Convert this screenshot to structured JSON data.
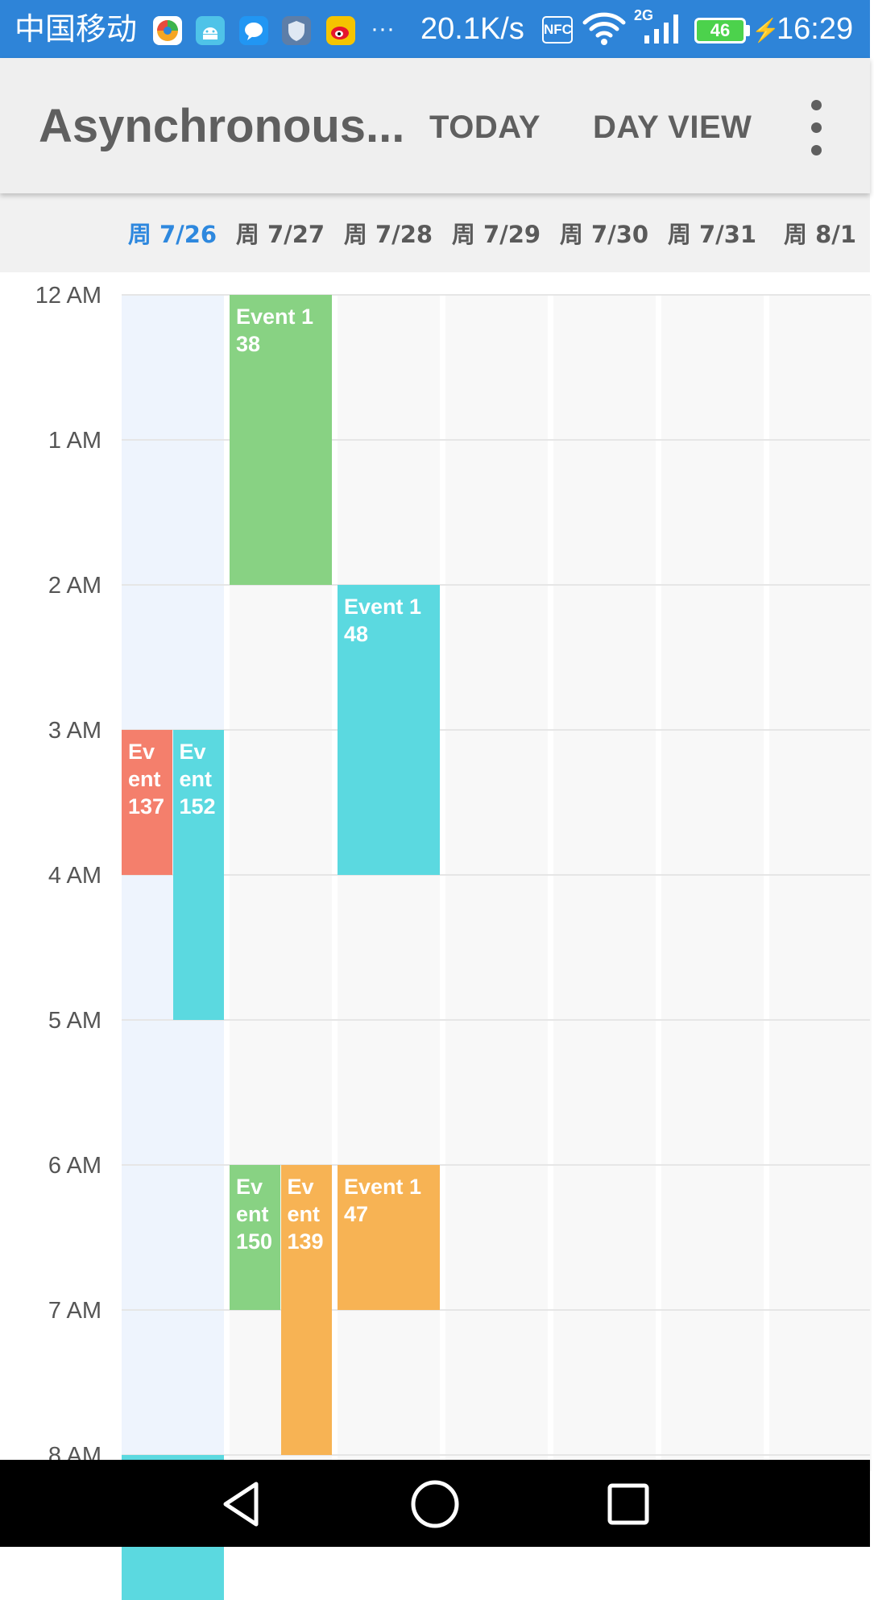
{
  "status_bar": {
    "carrier": "中国移动",
    "more": "···",
    "speed": "20.1K/s",
    "nfc": "NFC",
    "network_type": "2G",
    "battery": "46",
    "time": "16:29"
  },
  "app_bar": {
    "title": "Asynchronous...",
    "today_label": "TODAY",
    "day_view_label": "DAY VIEW"
  },
  "days": [
    "周 7/26",
    "周 7/27",
    "周 7/28",
    "周 7/29",
    "周 7/30",
    "周 7/31",
    "周 8/1"
  ],
  "today_index": 0,
  "hours": [
    "12 AM",
    "1 AM",
    "2 AM",
    "3 AM",
    "4 AM",
    "5 AM",
    "6 AM",
    "7 AM",
    "8 AM"
  ],
  "events": [
    {
      "label": "Event 137",
      "day": 0,
      "start": 3,
      "end": 4,
      "lane": 0,
      "lanes": 2,
      "color": "#f47f6c"
    },
    {
      "label": "Event 152",
      "day": 0,
      "start": 3,
      "end": 5,
      "lane": 1,
      "lanes": 2,
      "color": "#5bd9e0"
    },
    {
      "label": "",
      "day": 0,
      "start": 8,
      "end": 9,
      "lane": 0,
      "lanes": 1,
      "color": "#5bd9e0"
    },
    {
      "label": "Event 138",
      "day": 1,
      "start": 0,
      "end": 2,
      "lane": 0,
      "lanes": 1,
      "color": "#88d283"
    },
    {
      "label": "Event 150",
      "day": 1,
      "start": 6,
      "end": 7,
      "lane": 0,
      "lanes": 2,
      "color": "#88d283"
    },
    {
      "label": "Event 139",
      "day": 1,
      "start": 6,
      "end": 8,
      "lane": 1,
      "lanes": 2,
      "color": "#f7b354"
    },
    {
      "label": "Event 148",
      "day": 2,
      "start": 2,
      "end": 4,
      "lane": 0,
      "lanes": 1,
      "color": "#5bd9e0"
    },
    {
      "label": "Event 147",
      "day": 2,
      "start": 6,
      "end": 7,
      "lane": 0,
      "lanes": 1,
      "color": "#f7b354"
    }
  ],
  "colors": {
    "status_bar": "#2e84d8",
    "today_accent": "#2e88de",
    "today_column": "#eef4fd",
    "column": "#f8f8f8"
  }
}
